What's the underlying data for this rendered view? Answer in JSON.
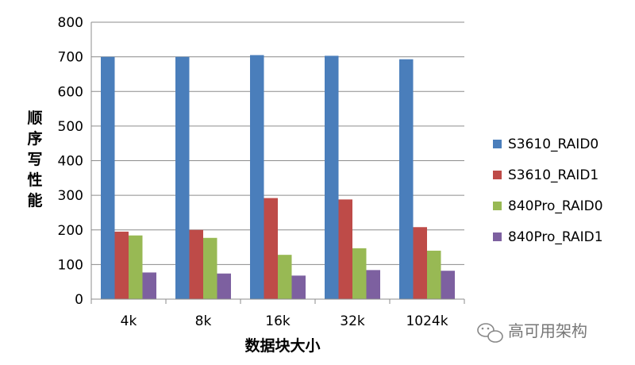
{
  "chart_data": {
    "type": "bar",
    "title": "",
    "xlabel": "数据块大小",
    "ylabel": "顺序写性能",
    "ylim": [
      0,
      800
    ],
    "yticks": [
      0,
      100,
      200,
      300,
      400,
      500,
      600,
      700,
      800
    ],
    "categories": [
      "4k",
      "8k",
      "16k",
      "32k",
      "1024k"
    ],
    "series": [
      {
        "name": "S3610_RAID0",
        "color": "#4a7ebb",
        "values": [
          700,
          700,
          705,
          703,
          693
        ]
      },
      {
        "name": "S3610_RAID1",
        "color": "#be4b48",
        "values": [
          195,
          200,
          292,
          288,
          208
        ]
      },
      {
        "name": "840Pro_RAID0",
        "color": "#98b954",
        "values": [
          184,
          177,
          128,
          147,
          140
        ]
      },
      {
        "name": "840Pro_RAID1",
        "color": "#7d60a0",
        "values": [
          77,
          74,
          68,
          84,
          82
        ]
      }
    ],
    "grid": true,
    "legend_position": "right"
  },
  "watermark": {
    "text": "高可用架构",
    "icon": "wechat-icon"
  }
}
